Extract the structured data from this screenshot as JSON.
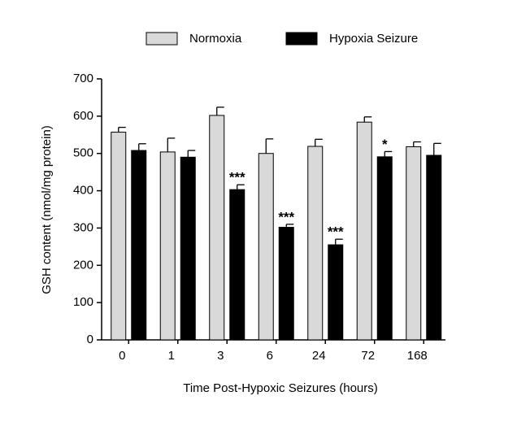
{
  "chart_data": {
    "type": "bar",
    "categories": [
      "0",
      "1",
      "3",
      "6",
      "24",
      "72",
      "168"
    ],
    "series": [
      {
        "name": "Normoxia",
        "color": "#d9d9d9",
        "values": [
          557,
          504,
          602,
          500,
          519,
          584,
          518
        ],
        "errors": [
          13,
          37,
          22,
          39,
          19,
          14,
          13
        ]
      },
      {
        "name": "Hypoxia Seizure",
        "color": "#000000",
        "values": [
          508,
          490,
          403,
          302,
          255,
          491,
          495
        ],
        "errors": [
          18,
          18,
          13,
          8,
          15,
          14,
          32
        ],
        "significance": [
          null,
          null,
          "***",
          "***",
          "***",
          "*",
          null
        ]
      }
    ],
    "x_label": "Time Post-Hypoxic Seizures (hours)",
    "y_label": "GSH content (nmol/mg protein)",
    "ylim": [
      0,
      700
    ],
    "yticks": [
      0,
      100,
      200,
      300,
      400,
      500,
      600,
      700
    ],
    "legend": "top",
    "grid": false
  }
}
